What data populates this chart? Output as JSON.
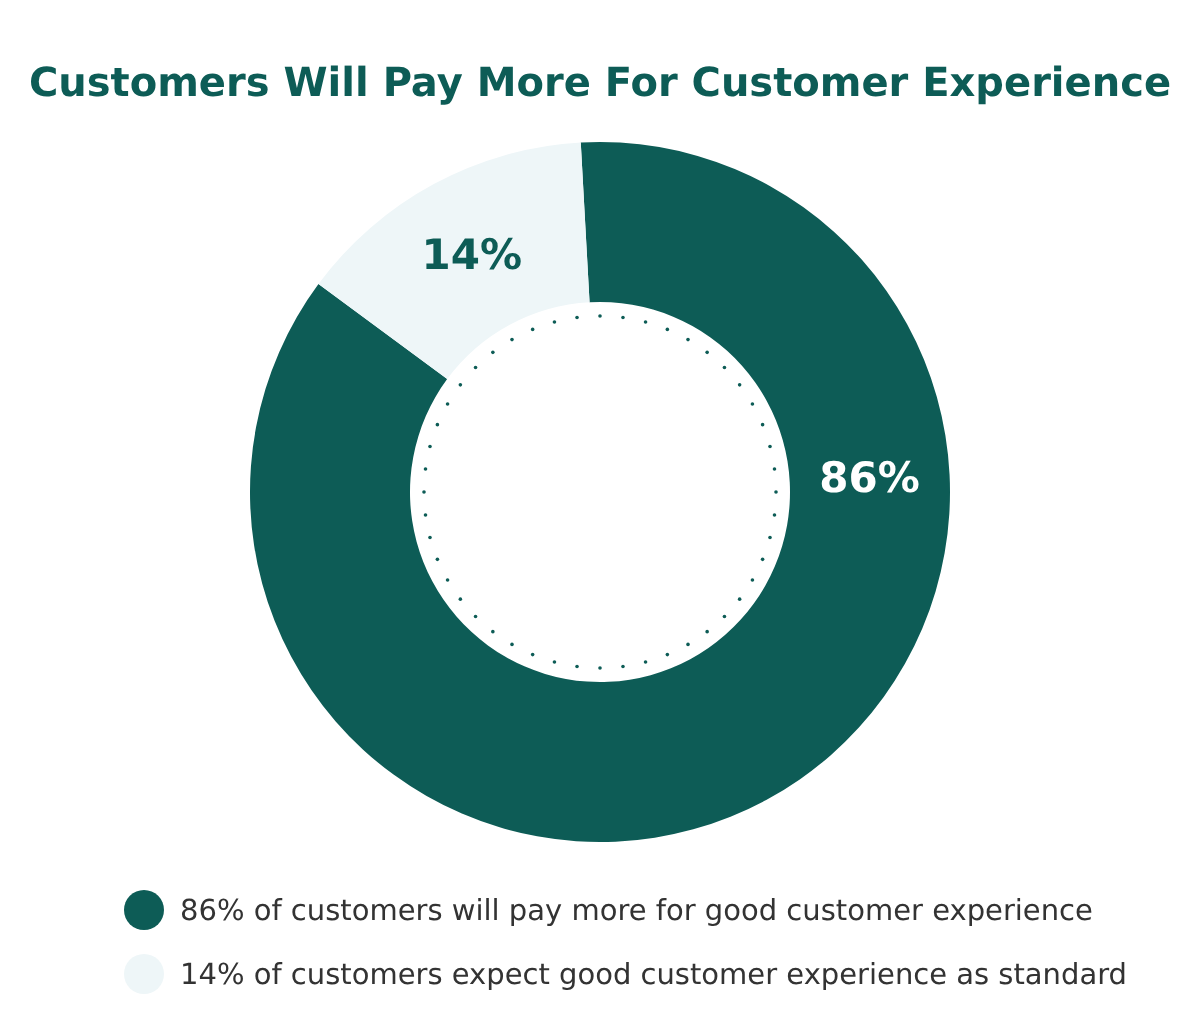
{
  "chart_data": {
    "type": "donut",
    "title": "Customers Will Pay More For Customer Experience",
    "categories": [
      "86% of customers will pay more for good customer experience",
      "14% of customers expect good customer experience as standard"
    ],
    "values": [
      86,
      14
    ],
    "colors": [
      "#0d5c56",
      "#eef6f8"
    ],
    "value_labels": [
      "86%",
      "14%"
    ],
    "legend": "bottom"
  }
}
